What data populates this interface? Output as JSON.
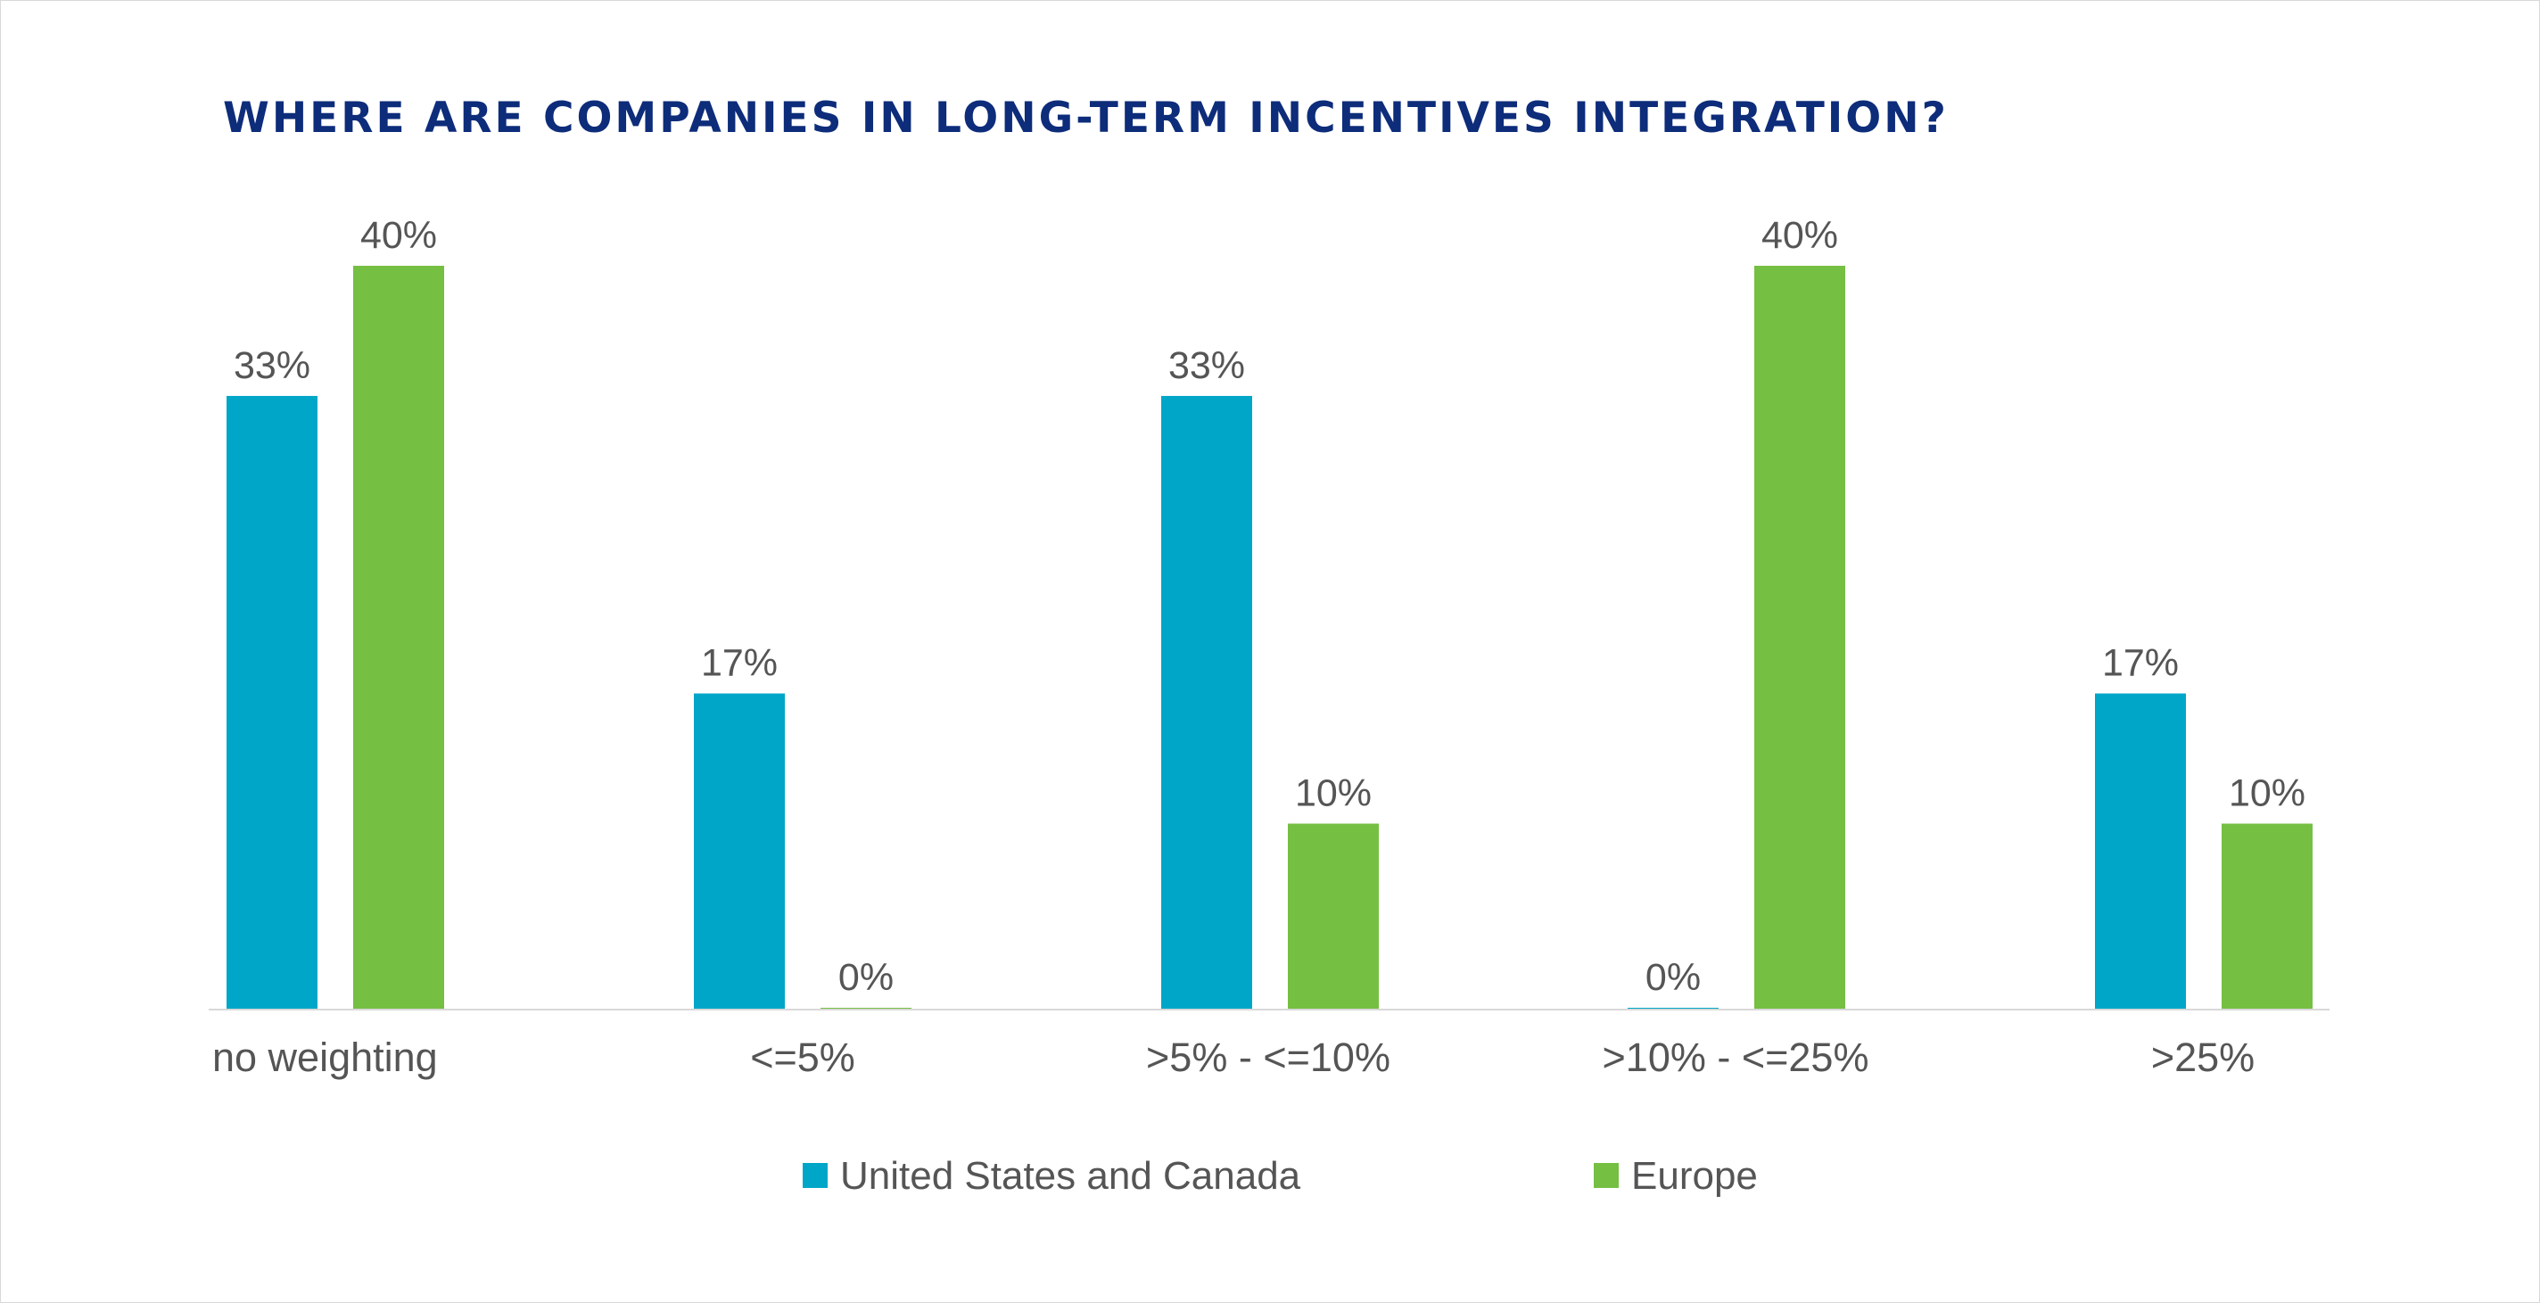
{
  "colors": {
    "title": "#0d2c7a",
    "text": "#555555",
    "axis": "#d9d9d9",
    "series": [
      "#00a6c7",
      "#75bf43"
    ]
  },
  "chart_data": {
    "type": "bar",
    "title": "WHERE ARE COMPANIES IN LONG-TERM INCENTIVES INTEGRATION?",
    "xlabel": "",
    "ylabel": "",
    "categories": [
      "no weighting",
      "<=5%",
      ">5% - <=10%",
      ">10% - <=25%",
      ">25%"
    ],
    "series": [
      {
        "name": "United States and Canada",
        "values": [
          33,
          17,
          33,
          0,
          17
        ],
        "labels": [
          "33%",
          "17%",
          "33%",
          "0%",
          "17%"
        ]
      },
      {
        "name": "Europe",
        "values": [
          40,
          0,
          10,
          40,
          10
        ],
        "labels": [
          "40%",
          "0%",
          "10%",
          "40%",
          "10%"
        ]
      }
    ],
    "ylim": [
      0,
      40
    ],
    "value_unit": "%",
    "grid": false,
    "legend_position": "bottom"
  }
}
